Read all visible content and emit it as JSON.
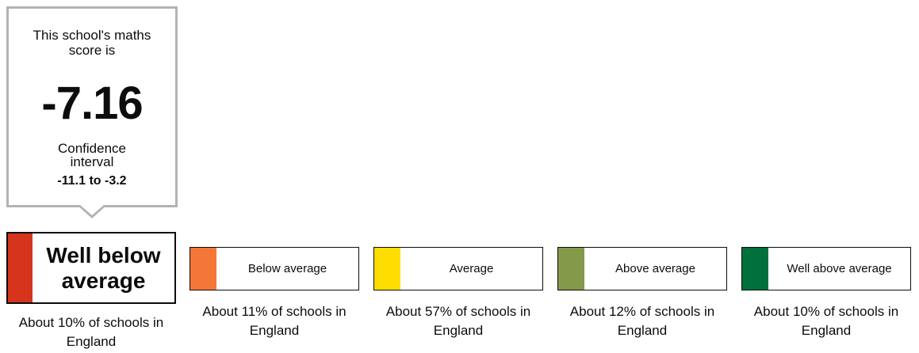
{
  "score_panel": {
    "lead_text": "This school's maths score is",
    "score": "-7.16",
    "ci_label": "Confidence interval",
    "ci_range": "-11.1 to -3.2"
  },
  "bands": [
    {
      "label": "Well below average",
      "description": "About 10% of schools in England",
      "color": "#d4351c",
      "selected": true
    },
    {
      "label": "Below average",
      "description": "About 11% of schools in England",
      "color": "#f47738",
      "selected": false
    },
    {
      "label": "Average",
      "description": "About 57% of schools in England",
      "color": "#ffdd00",
      "selected": false
    },
    {
      "label": "Above average",
      "description": "About 12% of schools in England",
      "color": "#85994b",
      "selected": false
    },
    {
      "label": "Well above average",
      "description": "About 10% of schools in England",
      "color": "#00703c",
      "selected": false
    }
  ]
}
